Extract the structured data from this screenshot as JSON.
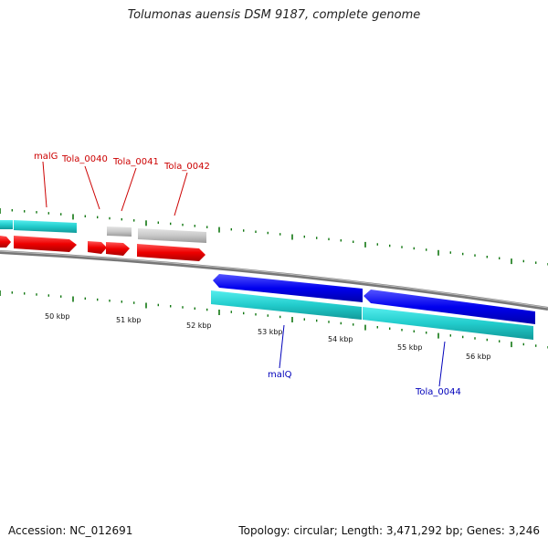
{
  "title": "Tolumonas auensis DSM 9187, complete genome",
  "footer": {
    "accession": "Accession: NC_012691",
    "summary": "Topology: circular; Length: 3,471,292 bp; Genes: 3,246"
  },
  "colors": {
    "forward_gene": "#ee0000",
    "reverse_gene": "#0000ee",
    "cds": "#22cccc",
    "other_gene": "#c8c8c8",
    "backbone": "#808080",
    "ticks": "#117711"
  },
  "genes": [
    {
      "label": "malG",
      "color": "#cc0000"
    },
    {
      "label": "Tola_0040",
      "color": "#cc0000"
    },
    {
      "label": "Tola_0041",
      "color": "#cc0000"
    },
    {
      "label": "Tola_0042",
      "color": "#cc0000"
    },
    {
      "label": "malQ",
      "color": "#0000bb"
    },
    {
      "label": "Tola_0044",
      "color": "#0000bb"
    }
  ],
  "kbp_labels": [
    "50 kbp",
    "51 kbp",
    "52 kbp",
    "53 kbp",
    "54 kbp",
    "55 kbp",
    "56 kbp"
  ]
}
